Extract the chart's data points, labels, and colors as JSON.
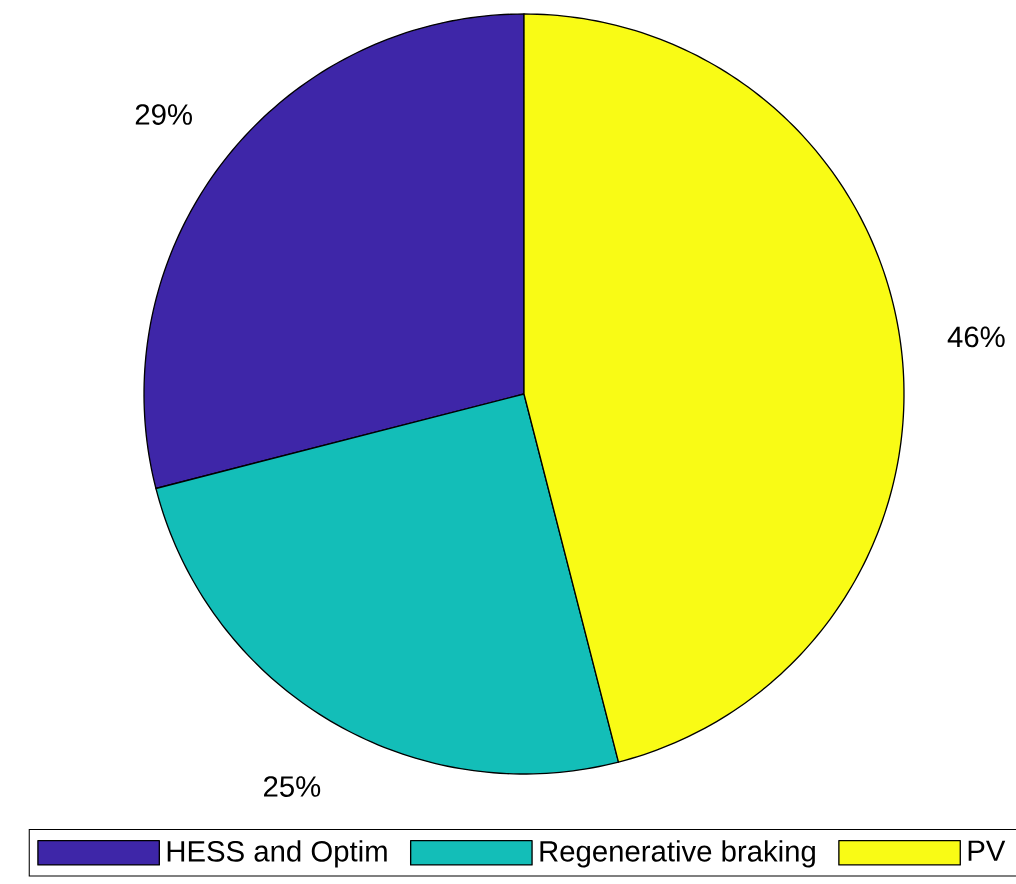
{
  "chart_data": {
    "type": "pie",
    "categories": [
      "HESS and Optim",
      "Regenerative braking",
      "PV"
    ],
    "values": [
      29,
      25,
      46
    ],
    "colors": [
      "#3e26a8",
      "#13beb8",
      "#f9fb15"
    ],
    "value_labels": [
      "29%",
      "25%",
      "46%"
    ],
    "legend": "bottom"
  }
}
